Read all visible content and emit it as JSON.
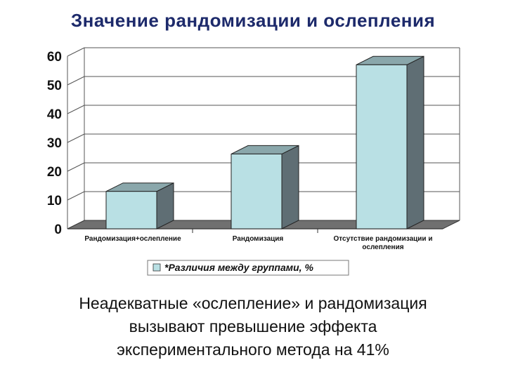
{
  "slide": {
    "title": "Значение рандомизации и ослепления",
    "caption_lines": [
      "Неадекватные «ослепление» и рандомизация",
      "вызывают превышение эффекта",
      "экспериментального метода на 41%"
    ]
  },
  "chart_data": {
    "type": "bar",
    "categories": [
      [
        "Рандомизация+ослепление"
      ],
      [
        "Рандомизация"
      ],
      [
        "Отсутствие рандомизации и",
        "ослепления"
      ]
    ],
    "series": [
      {
        "name": "*Различия между группами, %",
        "values": [
          13,
          26,
          57
        ]
      }
    ],
    "title": "",
    "xlabel": "",
    "ylabel": "",
    "ylim": [
      0,
      60
    ],
    "yticks": [
      0,
      10,
      20,
      30,
      40,
      50,
      60
    ],
    "grid": true,
    "legend_position": "bottom",
    "colors": {
      "bar_front": "#b9e0e4",
      "bar_side": "#5f6e74",
      "bar_top": "#8aa7ab",
      "floor": "#707070",
      "grid": "#555555"
    }
  }
}
